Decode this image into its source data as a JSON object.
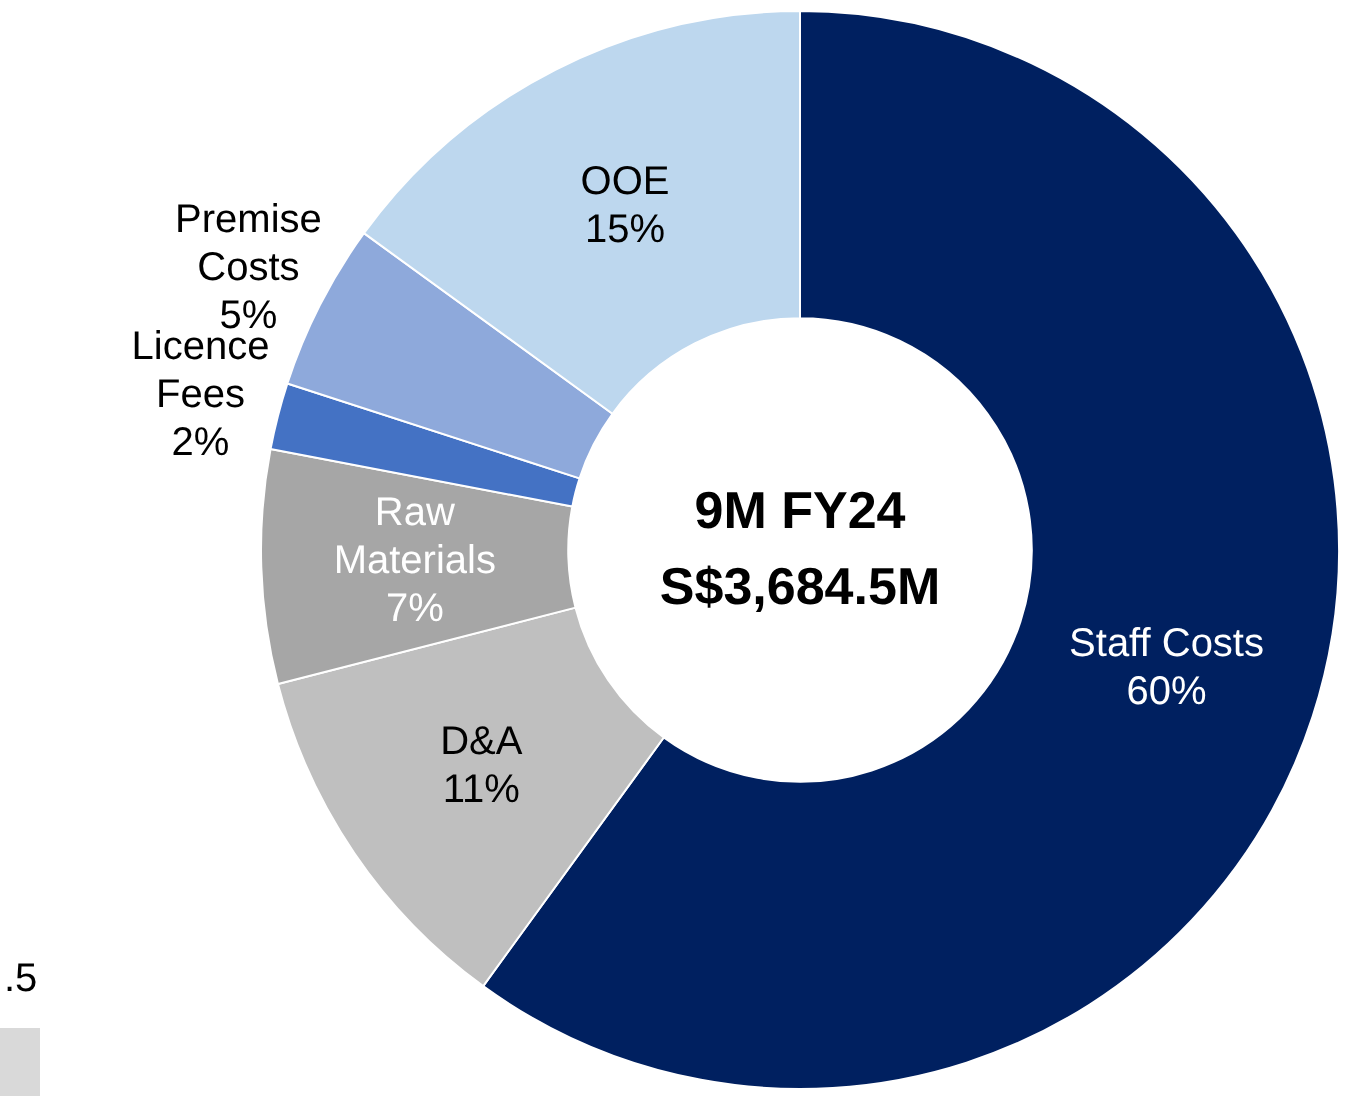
{
  "chart_data": {
    "type": "donut",
    "title": "9M FY24",
    "subtitle": "S$3,684.5M",
    "categories": [
      "Staff Costs",
      "D&A",
      "Raw Materials",
      "Licence Fees",
      "Premise Costs",
      "OOE"
    ],
    "values": [
      60,
      11,
      7,
      2,
      5,
      15
    ],
    "value_labels": [
      "60%",
      "11%",
      "7%",
      "2%",
      "5%",
      "15%"
    ],
    "colors": [
      "#002060",
      "#bfbfbf",
      "#a6a6a6",
      "#4472c4",
      "#8ea9db",
      "#bdd7ee"
    ],
    "legend": false,
    "annotations": [
      ".5"
    ]
  }
}
